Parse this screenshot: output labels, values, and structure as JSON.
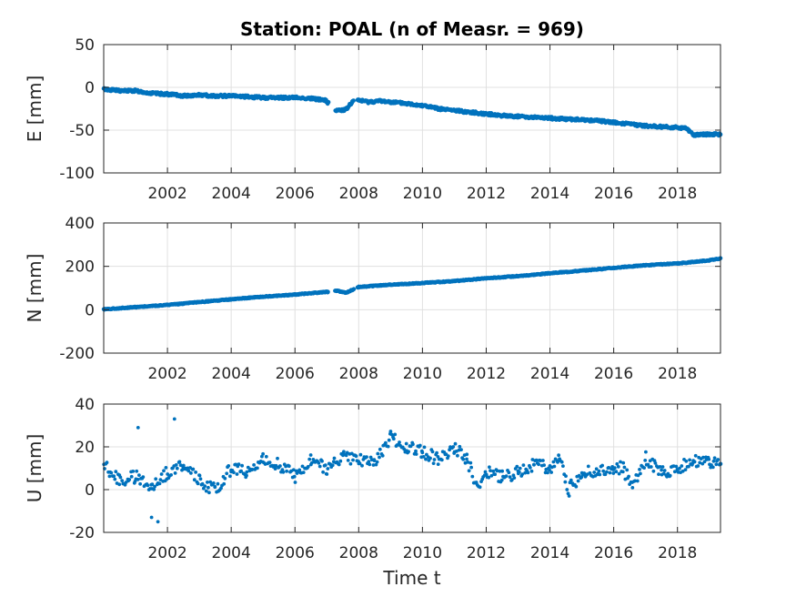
{
  "figure_title": "Station: POAL (n of Measr. = 969)",
  "chart_data": [
    {
      "type": "scatter",
      "ylabel": "E [mm]",
      "xlabel": "",
      "xlim": [
        2000.0,
        2019.35
      ],
      "ylim": [
        -100,
        50
      ],
      "xticks": [
        2002,
        2004,
        2006,
        2008,
        2010,
        2012,
        2014,
        2016,
        2018
      ],
      "yticks": [
        -100,
        -50,
        0,
        50
      ],
      "grid": true,
      "color": "#0072bd",
      "x": [
        2000.0,
        2000.5,
        2001.0,
        2001.5,
        2002.0,
        2002.5,
        2003.0,
        2003.5,
        2004.0,
        2004.5,
        2005.0,
        2005.5,
        2006.0,
        2006.5,
        2006.95,
        2007.3,
        2007.6,
        2007.8,
        2008.0,
        2008.3,
        2008.7,
        2009.0,
        2009.5,
        2010.0,
        2010.5,
        2011.0,
        2011.5,
        2012.0,
        2012.5,
        2013.0,
        2013.5,
        2014.0,
        2014.5,
        2015.0,
        2015.5,
        2016.0,
        2016.5,
        2017.0,
        2017.5,
        2018.0,
        2018.3,
        2018.5,
        2018.8,
        2019.0,
        2019.35
      ],
      "values": [
        -2,
        -4,
        -4,
        -7,
        -8,
        -10,
        -9,
        -10,
        -10,
        -11,
        -12,
        -12,
        -12,
        -13,
        -15,
        -27,
        -26,
        -17,
        -15,
        -17,
        -16,
        -17,
        -19,
        -21,
        -25,
        -27,
        -29,
        -31,
        -33,
        -34,
        -35,
        -36,
        -37,
        -38,
        -39,
        -41,
        -43,
        -45,
        -46,
        -47,
        -48,
        -56,
        -55,
        -55,
        -55
      ]
    },
    {
      "type": "scatter",
      "ylabel": "N [mm]",
      "xlabel": "",
      "xlim": [
        2000.0,
        2019.35
      ],
      "ylim": [
        -200,
        400
      ],
      "xticks": [
        2002,
        2004,
        2006,
        2008,
        2010,
        2012,
        2014,
        2016,
        2018
      ],
      "yticks": [
        -200,
        0,
        200,
        400
      ],
      "grid": true,
      "color": "#0072bd",
      "x": [
        2000.0,
        2001.0,
        2002.0,
        2003.0,
        2004.0,
        2005.0,
        2006.0,
        2007.0,
        2007.3,
        2007.6,
        2008.0,
        2009.0,
        2010.0,
        2011.0,
        2012.0,
        2013.0,
        2014.0,
        2015.0,
        2016.0,
        2017.0,
        2018.0,
        2019.0,
        2019.35
      ],
      "values": [
        2,
        12,
        22,
        35,
        48,
        60,
        70,
        82,
        88,
        78,
        105,
        115,
        123,
        132,
        145,
        155,
        168,
        180,
        193,
        205,
        213,
        228,
        237
      ]
    },
    {
      "type": "scatter",
      "ylabel": "U [mm]",
      "xlabel": "Time t",
      "xlim": [
        2000.0,
        2019.35
      ],
      "ylim": [
        -20,
        40
      ],
      "xticks": [
        2002,
        2004,
        2006,
        2008,
        2010,
        2012,
        2014,
        2016,
        2018
      ],
      "yticks": [
        -20,
        0,
        20,
        40
      ],
      "grid": true,
      "color": "#0072bd",
      "x": [
        2000.0,
        2000.5,
        2001.0,
        2001.5,
        2002.0,
        2002.5,
        2003.0,
        2003.5,
        2004.0,
        2004.5,
        2005.0,
        2005.5,
        2006.0,
        2006.5,
        2007.0,
        2007.5,
        2008.0,
        2008.5,
        2009.0,
        2009.5,
        2010.0,
        2010.5,
        2011.0,
        2011.4,
        2011.7,
        2012.0,
        2012.5,
        2013.0,
        2013.5,
        2014.0,
        2014.3,
        2014.6,
        2015.0,
        2015.5,
        2016.0,
        2016.3,
        2016.6,
        2017.0,
        2017.5,
        2018.0,
        2018.5,
        2019.0,
        2019.35
      ],
      "values": [
        12,
        4,
        6,
        2,
        8,
        12,
        4,
        0,
        10,
        8,
        14,
        12,
        6,
        14,
        10,
        16,
        14,
        12,
        25,
        20,
        18,
        14,
        20,
        14,
        2,
        8,
        6,
        8,
        12,
        10,
        15,
        0,
        8,
        8,
        10,
        10,
        0,
        15,
        8,
        10,
        14,
        12,
        12
      ],
      "outliers": {
        "x": [
          2001.08,
          2002.22,
          2001.5,
          2001.7
        ],
        "values": [
          29,
          33,
          -13,
          -15
        ]
      }
    }
  ]
}
